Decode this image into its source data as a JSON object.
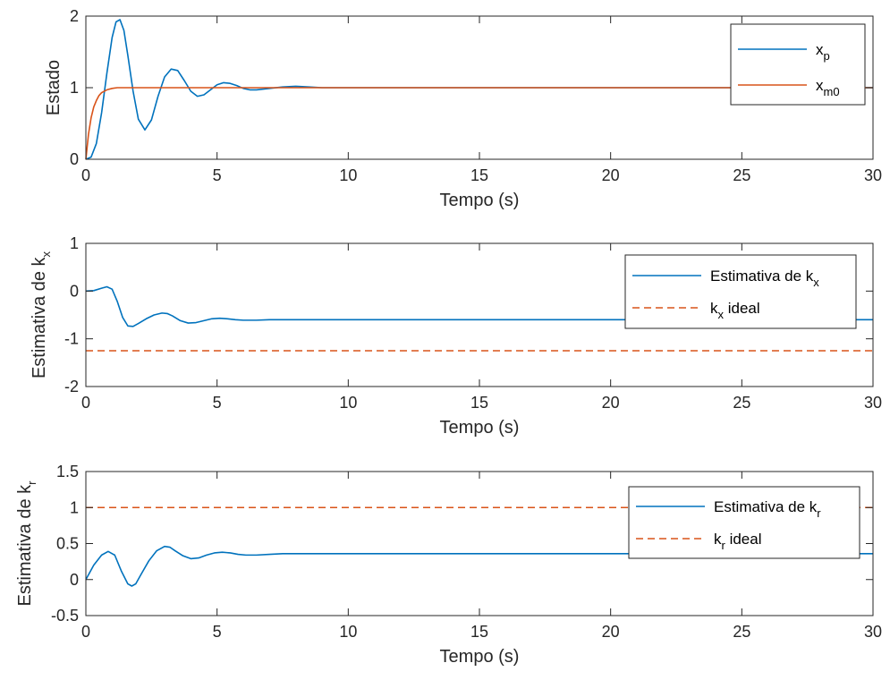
{
  "figure": {
    "colors": {
      "series1": "#0072bd",
      "series2": "#d95319",
      "axes": "#262626"
    }
  },
  "chart_data": [
    {
      "type": "line",
      "xlabel": "Tempo (s)",
      "ylabel": "Estado",
      "xlim": [
        0,
        30
      ],
      "ylim": [
        0,
        2
      ],
      "xticks": [
        0,
        5,
        10,
        15,
        20,
        25,
        30
      ],
      "yticks": [
        0,
        1,
        2
      ],
      "grid": false,
      "legend_position": "top-right",
      "series": [
        {
          "name": "x_p",
          "name_base": "x",
          "name_sub": "p",
          "style": "solid",
          "color": "#0072bd",
          "x": [
            0,
            0.2,
            0.4,
            0.6,
            0.8,
            1.0,
            1.15,
            1.3,
            1.45,
            1.6,
            1.8,
            2.0,
            2.25,
            2.5,
            2.75,
            3.0,
            3.25,
            3.5,
            3.75,
            4.0,
            4.25,
            4.5,
            4.75,
            5.0,
            5.25,
            5.5,
            5.75,
            6.0,
            6.25,
            6.5,
            7.0,
            7.5,
            8.0,
            8.5,
            9.0,
            9.5,
            10.0,
            10.5,
            11.0,
            12.0,
            14.0,
            30.0
          ],
          "y": [
            0,
            0.03,
            0.22,
            0.65,
            1.2,
            1.7,
            1.92,
            1.95,
            1.8,
            1.45,
            0.95,
            0.56,
            0.41,
            0.55,
            0.88,
            1.15,
            1.26,
            1.24,
            1.1,
            0.95,
            0.88,
            0.9,
            0.97,
            1.04,
            1.07,
            1.06,
            1.03,
            0.99,
            0.97,
            0.97,
            0.99,
            1.01,
            1.02,
            1.01,
            1.0,
            1.0,
            1.0,
            1.0,
            1.0,
            1.0,
            1.0,
            1.0
          ]
        },
        {
          "name": "x_m0",
          "name_base": "x",
          "name_sub": "m0",
          "style": "solid",
          "color": "#d95319",
          "x": [
            0,
            0.1,
            0.2,
            0.3,
            0.4,
            0.5,
            0.6,
            0.8,
            1.0,
            1.2,
            1.5,
            2.0,
            3.0,
            30.0
          ],
          "y": [
            0,
            0.35,
            0.58,
            0.73,
            0.82,
            0.89,
            0.93,
            0.97,
            0.99,
            1.0,
            1.0,
            1.0,
            1.0,
            1.0
          ]
        }
      ]
    },
    {
      "type": "line",
      "xlabel": "Tempo (s)",
      "ylabel": "Estimativa de k_x",
      "ylabel_base": "Estimativa de k",
      "ylabel_sub": "x",
      "xlim": [
        0,
        30
      ],
      "ylim": [
        -2,
        1
      ],
      "xticks": [
        0,
        5,
        10,
        15,
        20,
        25,
        30
      ],
      "yticks": [
        -2,
        -1,
        0,
        1
      ],
      "grid": false,
      "legend_position": "top-right",
      "series": [
        {
          "name": "Estimativa de k_x",
          "name_base": "Estimativa de k",
          "name_sub": "x",
          "style": "solid",
          "color": "#0072bd",
          "x": [
            0,
            0.3,
            0.6,
            0.8,
            1.0,
            1.2,
            1.4,
            1.6,
            1.8,
            2.0,
            2.3,
            2.6,
            2.9,
            3.1,
            3.3,
            3.6,
            3.9,
            4.2,
            4.5,
            4.8,
            5.1,
            5.4,
            5.7,
            6.0,
            6.5,
            7.0,
            8.0,
            9.0,
            10.0,
            30.0
          ],
          "y": [
            0,
            0.01,
            0.06,
            0.09,
            0.04,
            -0.22,
            -0.55,
            -0.73,
            -0.74,
            -0.68,
            -0.58,
            -0.5,
            -0.46,
            -0.47,
            -0.52,
            -0.62,
            -0.67,
            -0.66,
            -0.62,
            -0.58,
            -0.57,
            -0.58,
            -0.6,
            -0.61,
            -0.61,
            -0.6,
            -0.6,
            -0.6,
            -0.6,
            -0.6
          ]
        },
        {
          "name": "k_x ideal",
          "name_base": "k",
          "name_sub": "x",
          "name_tail": " ideal",
          "style": "dashed",
          "color": "#d95319",
          "x": [
            0,
            30
          ],
          "y": [
            -1.25,
            -1.25
          ]
        }
      ]
    },
    {
      "type": "line",
      "xlabel": "Tempo (s)",
      "ylabel": "Estimativa de k_r",
      "ylabel_base": "Estimativa de k",
      "ylabel_sub": "r",
      "xlim": [
        0,
        30
      ],
      "ylim": [
        -0.5,
        1.5
      ],
      "xticks": [
        0,
        5,
        10,
        15,
        20,
        25,
        30
      ],
      "yticks": [
        -0.5,
        0,
        0.5,
        1,
        1.5
      ],
      "grid": false,
      "legend_position": "top-right",
      "series": [
        {
          "name": "Estimativa de k_r",
          "name_base": "Estimativa de k",
          "name_sub": "r",
          "style": "solid",
          "color": "#0072bd",
          "x": [
            0,
            0.3,
            0.6,
            0.85,
            1.1,
            1.35,
            1.6,
            1.75,
            1.9,
            2.1,
            2.4,
            2.7,
            3.0,
            3.2,
            3.4,
            3.7,
            4.0,
            4.3,
            4.6,
            4.9,
            5.2,
            5.5,
            5.8,
            6.1,
            6.5,
            7.0,
            7.5,
            8.0,
            9.0,
            10.0,
            30.0
          ],
          "y": [
            0,
            0.2,
            0.34,
            0.39,
            0.34,
            0.12,
            -0.06,
            -0.09,
            -0.06,
            0.07,
            0.26,
            0.4,
            0.46,
            0.45,
            0.4,
            0.33,
            0.29,
            0.3,
            0.34,
            0.37,
            0.38,
            0.37,
            0.35,
            0.34,
            0.34,
            0.35,
            0.36,
            0.36,
            0.36,
            0.36,
            0.36
          ]
        },
        {
          "name": "k_r ideal",
          "name_base": "k",
          "name_sub": "r",
          "name_tail": " ideal",
          "style": "dashed",
          "color": "#d95319",
          "x": [
            0,
            30
          ],
          "y": [
            1,
            1
          ]
        }
      ]
    }
  ]
}
